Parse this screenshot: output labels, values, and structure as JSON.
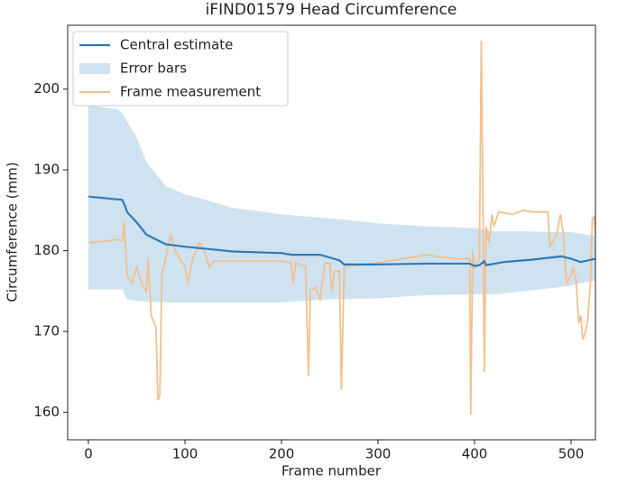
{
  "chart_data": {
    "type": "line",
    "title": "iFIND01579 Head Circumference",
    "x_label": "Frame number",
    "y_label": "Circumference (mm)",
    "xlim": [
      -21.5,
      525.2
    ],
    "ylim": [
      156.6,
      207.9
    ],
    "xticks": [
      0,
      100,
      200,
      300,
      400,
      500
    ],
    "yticks": [
      160,
      170,
      180,
      190,
      200
    ],
    "grid": false,
    "legend": "upper left",
    "band": {
      "name": "Error bars",
      "color": "#cfe2f0",
      "x": [
        0,
        30,
        35,
        40,
        50,
        60,
        80,
        100,
        150,
        200,
        250,
        300,
        350,
        400,
        420,
        450,
        490,
        500,
        510,
        525
      ],
      "upper": [
        198,
        197.5,
        197,
        196,
        194,
        191,
        188,
        187,
        185.3,
        184.5,
        184,
        183.4,
        183,
        182.8,
        182.4,
        182.4,
        182.3,
        182.3,
        182.1,
        181.8
      ],
      "lower": [
        175.2,
        175.2,
        175.2,
        174,
        173.8,
        173.7,
        173.6,
        173.6,
        173.6,
        173.6,
        174,
        174.1,
        174.5,
        174.6,
        174.6,
        175,
        175.5,
        175.7,
        176,
        176.3
      ]
    },
    "series": [
      {
        "name": "Central estimate",
        "color": "#2f7ab9",
        "x": [
          0,
          35,
          38,
          40,
          50,
          60,
          80,
          100,
          150,
          200,
          210,
          240,
          260,
          265,
          300,
          350,
          395,
          400,
          405,
          410,
          412,
          430,
          460,
          490,
          500,
          510,
          525
        ],
        "values": [
          186.7,
          186.3,
          185.5,
          184.8,
          183.5,
          182,
          180.8,
          180.5,
          179.9,
          179.7,
          179.5,
          179.5,
          178.8,
          178.3,
          178.3,
          178.4,
          178.4,
          178.1,
          178.2,
          178.7,
          178.2,
          178.6,
          178.9,
          179.3,
          179.0,
          178.6,
          179.0
        ]
      },
      {
        "name": "Frame measurement",
        "color": "#f2c08e",
        "x": [
          0,
          20,
          30,
          35,
          37,
          40,
          45,
          50,
          55,
          60,
          62,
          65,
          70,
          72,
          74,
          76,
          80,
          85,
          90,
          95,
          100,
          103,
          108,
          115,
          120,
          125,
          130,
          200,
          210,
          212,
          215,
          225,
          228,
          230,
          235,
          240,
          245,
          250,
          252,
          255,
          260,
          262,
          265,
          300,
          350,
          380,
          395,
          396,
          398,
          400,
          405,
          407,
          409,
          410,
          412,
          415,
          418,
          420,
          425,
          440,
          450,
          460,
          476,
          478,
          485,
          489,
          492,
          495,
          500,
          502,
          505,
          508,
          510,
          512,
          515,
          517,
          520,
          522,
          524,
          525
        ],
        "values": [
          181,
          181.2,
          181.4,
          181.2,
          183.6,
          177,
          176,
          178,
          176,
          175,
          179,
          172,
          170.5,
          161.5,
          162,
          177,
          179,
          182,
          180,
          179,
          178,
          176,
          179,
          181,
          180,
          178,
          178.7,
          178.7,
          178.5,
          176,
          178.5,
          178,
          164.5,
          175,
          175.5,
          174,
          178.5,
          178.5,
          175,
          177.5,
          177.5,
          162.8,
          178,
          178.5,
          179.5,
          179,
          179,
          159.7,
          180,
          178,
          179,
          206,
          182,
          165,
          183,
          181,
          184.5,
          183,
          184.8,
          184.5,
          185,
          184.8,
          184.8,
          180.5,
          182,
          184.5,
          182,
          176,
          177,
          178,
          176.5,
          171,
          172,
          169,
          170,
          171.2,
          176,
          184,
          184.2,
          182
        ]
      }
    ]
  }
}
